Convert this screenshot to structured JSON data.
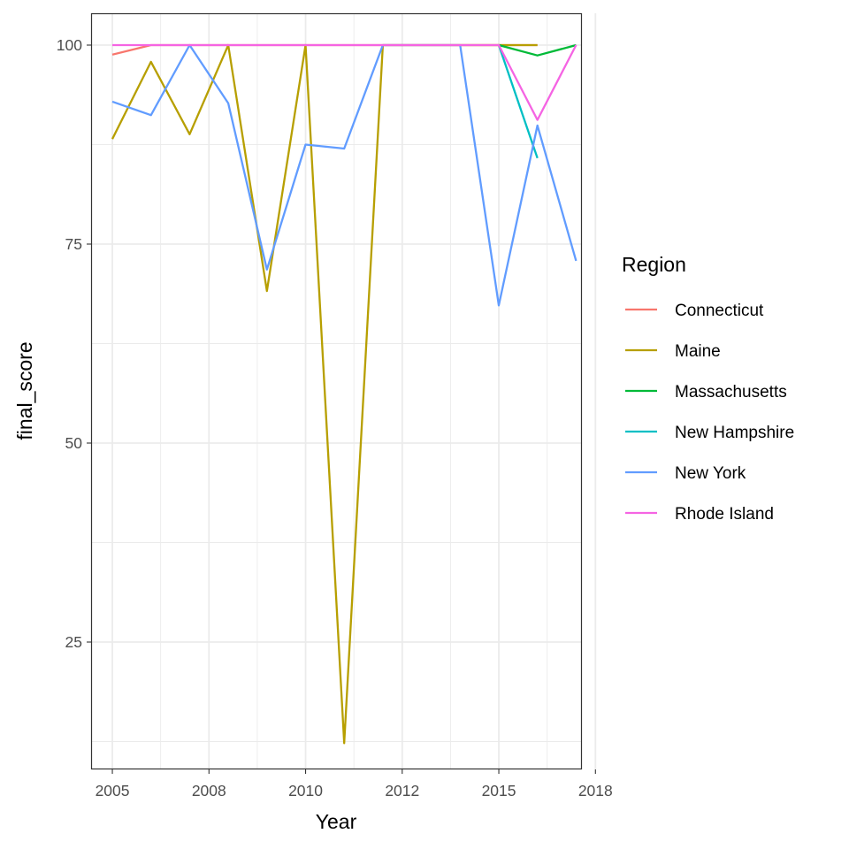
{
  "chart_data": {
    "type": "line",
    "xlabel": "Year",
    "ylabel": "final_score",
    "xlim": [
      2005.05,
      2017.75
    ],
    "ylim": [
      9.0,
      104.0
    ],
    "x_tick_positions": [
      2005.6,
      2008.1,
      2010.6,
      2013.1,
      2015.6,
      2018.1
    ],
    "x_tick_labels": [
      "2005",
      "2008",
      "2010",
      "2012",
      "2015",
      "2018"
    ],
    "y_ticks": [
      25,
      50,
      75,
      100
    ],
    "y_minor_ticks": [
      12.5,
      37.5,
      62.5,
      87.5
    ],
    "grid": true,
    "legend_title": "Region",
    "legend_position": "right",
    "series": [
      {
        "name": "Connecticut",
        "color": "#F8766D",
        "points": [
          [
            2005.6,
            98.8
          ],
          [
            2006.6,
            100
          ],
          [
            2007.6,
            100
          ],
          [
            2008.6,
            100
          ],
          [
            2009.6,
            100
          ],
          [
            2010.6,
            100
          ],
          [
            2011.6,
            100
          ],
          [
            2012.6,
            100
          ],
          [
            2013.6,
            100
          ],
          [
            2014.6,
            100
          ],
          [
            2015.6,
            100
          ],
          [
            2016.6,
            100
          ]
        ]
      },
      {
        "name": "Maine",
        "color": "#B79F00",
        "points": [
          [
            2005.6,
            88.2
          ],
          [
            2006.6,
            97.9
          ],
          [
            2007.6,
            88.8
          ],
          [
            2008.6,
            100
          ],
          [
            2009.6,
            69.1
          ],
          [
            2010.6,
            100
          ],
          [
            2011.6,
            12.3
          ],
          [
            2012.6,
            100
          ],
          [
            2013.6,
            100
          ],
          [
            2014.6,
            100
          ],
          [
            2015.6,
            100
          ],
          [
            2016.6,
            100
          ]
        ]
      },
      {
        "name": "Massachusetts",
        "color": "#00BA38",
        "points": [
          [
            2015.6,
            100
          ],
          [
            2016.6,
            98.7
          ],
          [
            2017.6,
            100
          ]
        ]
      },
      {
        "name": "New Hampshire",
        "color": "#00BFC4",
        "points": [
          [
            2015.6,
            100
          ],
          [
            2016.6,
            85.8
          ]
        ]
      },
      {
        "name": "New York",
        "color": "#619CFF",
        "points": [
          [
            2005.6,
            92.9
          ],
          [
            2006.6,
            91.2
          ],
          [
            2007.6,
            100
          ],
          [
            2008.6,
            92.7
          ],
          [
            2009.6,
            71.8
          ],
          [
            2010.6,
            87.5
          ],
          [
            2011.6,
            87.0
          ],
          [
            2012.6,
            100
          ],
          [
            2013.6,
            100
          ],
          [
            2014.6,
            100
          ],
          [
            2015.6,
            67.3
          ],
          [
            2016.6,
            89.9
          ],
          [
            2017.6,
            72.9
          ]
        ]
      },
      {
        "name": "Rhode Island",
        "color": "#F564E3",
        "points": [
          [
            2005.6,
            100
          ],
          [
            2006.6,
            100
          ],
          [
            2007.6,
            100
          ],
          [
            2008.6,
            100
          ],
          [
            2009.6,
            100
          ],
          [
            2010.6,
            100
          ],
          [
            2011.6,
            100
          ],
          [
            2012.6,
            100
          ],
          [
            2013.6,
            100
          ],
          [
            2014.6,
            100
          ],
          [
            2015.6,
            100
          ],
          [
            2016.6,
            90.6
          ],
          [
            2017.6,
            100
          ]
        ]
      }
    ]
  }
}
